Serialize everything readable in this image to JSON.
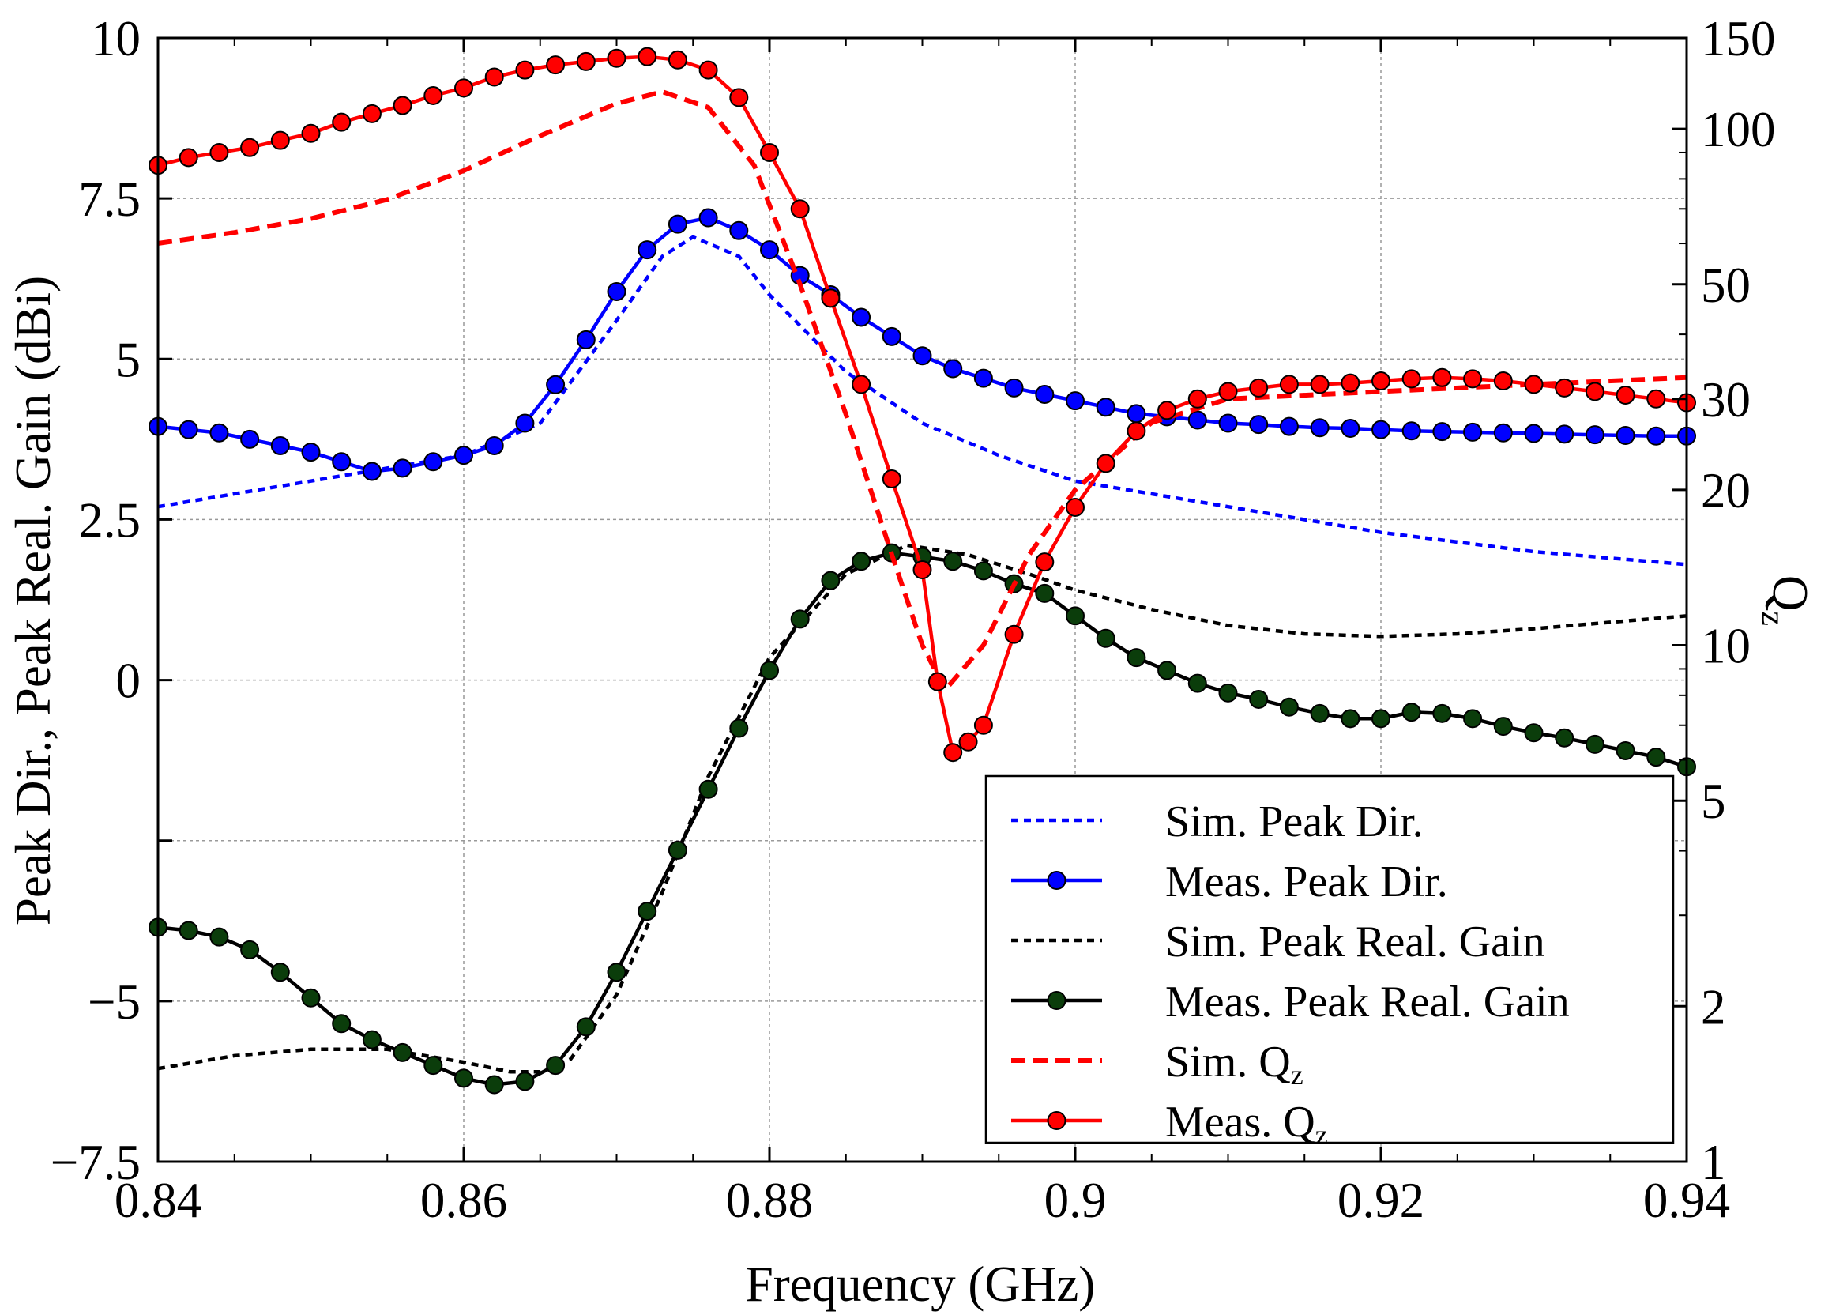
{
  "chart_data": {
    "type": "line",
    "xlabel": "Frequency (GHz)",
    "ylabel": "Peak Dir., Peak Real. Gain (dBi)",
    "y2label": {
      "main": "Q",
      "sub": "z"
    },
    "xlim": [
      0.84,
      0.94
    ],
    "ylim": [
      -7.5,
      10
    ],
    "y2lim": [
      1,
      150
    ],
    "y2scale": "log",
    "grid": true,
    "legend_position": "bottom-right",
    "x_ticks": [
      0.84,
      0.86,
      0.88,
      0.9,
      0.92,
      0.94
    ],
    "x_tick_labels": [
      "0.84",
      "0.86",
      "0.88",
      "0.9",
      "0.92",
      "0.94"
    ],
    "y_ticks": [
      -7.5,
      -5,
      -2.5,
      0,
      2.5,
      5,
      7.5,
      10
    ],
    "y_tick_labels": [
      "−7.5",
      "−5",
      "",
      "0",
      "2.5",
      "5",
      "7.5",
      "10"
    ],
    "y2_ticks": [
      1,
      2,
      5,
      10,
      20,
      30,
      50,
      100,
      150
    ],
    "y2_tick_labels": [
      "1",
      "2",
      "5",
      "10",
      "20",
      "30",
      "50",
      "100",
      "150"
    ],
    "series": [
      {
        "name": "Sim. Peak Dir.",
        "axis": "left",
        "color": "#0000ff",
        "style": "dotted",
        "marker": false,
        "x": [
          0.84,
          0.845,
          0.85,
          0.855,
          0.86,
          0.865,
          0.87,
          0.873,
          0.875,
          0.878,
          0.88,
          0.885,
          0.89,
          0.895,
          0.9,
          0.91,
          0.92,
          0.93,
          0.94
        ],
        "y": [
          2.7,
          2.9,
          3.1,
          3.3,
          3.5,
          4.0,
          5.6,
          6.6,
          6.9,
          6.6,
          6.0,
          4.8,
          4.0,
          3.5,
          3.1,
          2.7,
          2.3,
          2.0,
          1.8
        ]
      },
      {
        "name": "Meas. Peak Dir.",
        "axis": "left",
        "color": "#0000ff",
        "style": "solid",
        "marker": true,
        "x": [
          0.84,
          0.842,
          0.844,
          0.846,
          0.848,
          0.85,
          0.852,
          0.854,
          0.856,
          0.858,
          0.86,
          0.862,
          0.864,
          0.866,
          0.868,
          0.87,
          0.872,
          0.874,
          0.876,
          0.878,
          0.88,
          0.882,
          0.884,
          0.886,
          0.888,
          0.89,
          0.892,
          0.894,
          0.896,
          0.898,
          0.9,
          0.902,
          0.904,
          0.906,
          0.908,
          0.91,
          0.912,
          0.914,
          0.916,
          0.918,
          0.92,
          0.922,
          0.924,
          0.926,
          0.928,
          0.93,
          0.932,
          0.934,
          0.936,
          0.938,
          0.94
        ],
        "y": [
          3.95,
          3.9,
          3.85,
          3.75,
          3.65,
          3.55,
          3.4,
          3.25,
          3.3,
          3.4,
          3.5,
          3.65,
          4.0,
          4.6,
          5.3,
          6.05,
          6.7,
          7.1,
          7.2,
          7.0,
          6.7,
          6.3,
          6.0,
          5.65,
          5.35,
          5.05,
          4.85,
          4.7,
          4.55,
          4.45,
          4.35,
          4.25,
          4.15,
          4.1,
          4.05,
          4.0,
          3.98,
          3.95,
          3.93,
          3.92,
          3.9,
          3.88,
          3.87,
          3.86,
          3.85,
          3.84,
          3.83,
          3.82,
          3.81,
          3.8,
          3.8
        ]
      },
      {
        "name": "Sim. Peak Real. Gain",
        "axis": "left",
        "color": "#000000",
        "style": "dotted",
        "marker": false,
        "x": [
          0.84,
          0.845,
          0.85,
          0.855,
          0.86,
          0.863,
          0.865,
          0.867,
          0.87,
          0.873,
          0.876,
          0.88,
          0.885,
          0.889,
          0.893,
          0.897,
          0.9,
          0.905,
          0.91,
          0.915,
          0.92,
          0.925,
          0.93,
          0.935,
          0.94
        ],
        "y": [
          -6.05,
          -5.85,
          -5.75,
          -5.75,
          -5.95,
          -6.1,
          -6.1,
          -5.9,
          -4.9,
          -3.3,
          -1.5,
          0.35,
          1.65,
          2.1,
          1.95,
          1.65,
          1.4,
          1.1,
          0.85,
          0.72,
          0.68,
          0.72,
          0.8,
          0.9,
          1.0
        ]
      },
      {
        "name": "Meas. Peak Real. Gain",
        "axis": "left",
        "color": "#000000",
        "style": "solid",
        "marker": true,
        "marker_color": "#0b3d0b",
        "x": [
          0.84,
          0.842,
          0.844,
          0.846,
          0.848,
          0.85,
          0.852,
          0.854,
          0.856,
          0.858,
          0.86,
          0.862,
          0.864,
          0.866,
          0.868,
          0.87,
          0.872,
          0.874,
          0.876,
          0.878,
          0.88,
          0.882,
          0.884,
          0.886,
          0.888,
          0.89,
          0.892,
          0.894,
          0.896,
          0.898,
          0.9,
          0.902,
          0.904,
          0.906,
          0.908,
          0.91,
          0.912,
          0.914,
          0.916,
          0.918,
          0.92,
          0.922,
          0.924,
          0.926,
          0.928,
          0.93,
          0.932,
          0.934,
          0.936,
          0.938,
          0.94
        ],
        "y": [
          -3.85,
          -3.9,
          -4.0,
          -4.2,
          -4.55,
          -4.95,
          -5.35,
          -5.6,
          -5.8,
          -6.0,
          -6.2,
          -6.3,
          -6.25,
          -6.0,
          -5.4,
          -4.55,
          -3.6,
          -2.65,
          -1.7,
          -0.75,
          0.15,
          0.95,
          1.55,
          1.85,
          1.98,
          1.92,
          1.85,
          1.7,
          1.5,
          1.35,
          1.0,
          0.65,
          0.35,
          0.15,
          -0.05,
          -0.2,
          -0.3,
          -0.42,
          -0.52,
          -0.6,
          -0.6,
          -0.5,
          -0.52,
          -0.6,
          -0.72,
          -0.82,
          -0.9,
          -1.0,
          -1.1,
          -1.2,
          -1.35
        ]
      },
      {
        "name": "Sim. Q",
        "name_sub": "z",
        "axis": "right",
        "color": "#ff0000",
        "style": "dashed",
        "marker": false,
        "x": [
          0.84,
          0.845,
          0.85,
          0.855,
          0.86,
          0.865,
          0.87,
          0.873,
          0.876,
          0.879,
          0.882,
          0.885,
          0.888,
          0.89,
          0.8915,
          0.894,
          0.897,
          0.9,
          0.905,
          0.91,
          0.92,
          0.93,
          0.94
        ],
        "y": [
          60,
          63,
          67,
          73,
          83,
          97,
          112,
          118,
          110,
          85,
          50,
          28,
          15,
          10,
          8.2,
          10,
          15,
          20,
          27,
          30,
          31,
          32,
          33
        ]
      },
      {
        "name": "Meas. Q",
        "name_sub": "z",
        "axis": "right",
        "color": "#ff0000",
        "style": "solid",
        "marker": true,
        "x": [
          0.84,
          0.842,
          0.844,
          0.846,
          0.848,
          0.85,
          0.852,
          0.854,
          0.856,
          0.858,
          0.86,
          0.862,
          0.864,
          0.866,
          0.868,
          0.87,
          0.872,
          0.874,
          0.876,
          0.878,
          0.88,
          0.882,
          0.884,
          0.886,
          0.888,
          0.89,
          0.891,
          0.892,
          0.893,
          0.894,
          0.896,
          0.898,
          0.9,
          0.902,
          0.904,
          0.906,
          0.908,
          0.91,
          0.912,
          0.914,
          0.916,
          0.918,
          0.92,
          0.922,
          0.924,
          0.926,
          0.928,
          0.93,
          0.932,
          0.934,
          0.936,
          0.938,
          0.94
        ],
        "y": [
          85,
          88,
          90,
          92,
          95,
          98,
          103,
          107,
          111,
          116,
          120,
          126,
          130,
          133,
          135,
          137,
          138,
          136,
          130,
          115,
          90,
          70,
          47,
          32,
          21,
          14,
          8.5,
          6.2,
          6.5,
          7.0,
          10.5,
          14.5,
          18.5,
          22.5,
          26.0,
          28.5,
          30.0,
          31.0,
          31.5,
          32.0,
          32.0,
          32.2,
          32.5,
          32.8,
          33.0,
          32.8,
          32.5,
          32.0,
          31.5,
          31.0,
          30.5,
          30.0,
          29.5
        ]
      }
    ]
  }
}
